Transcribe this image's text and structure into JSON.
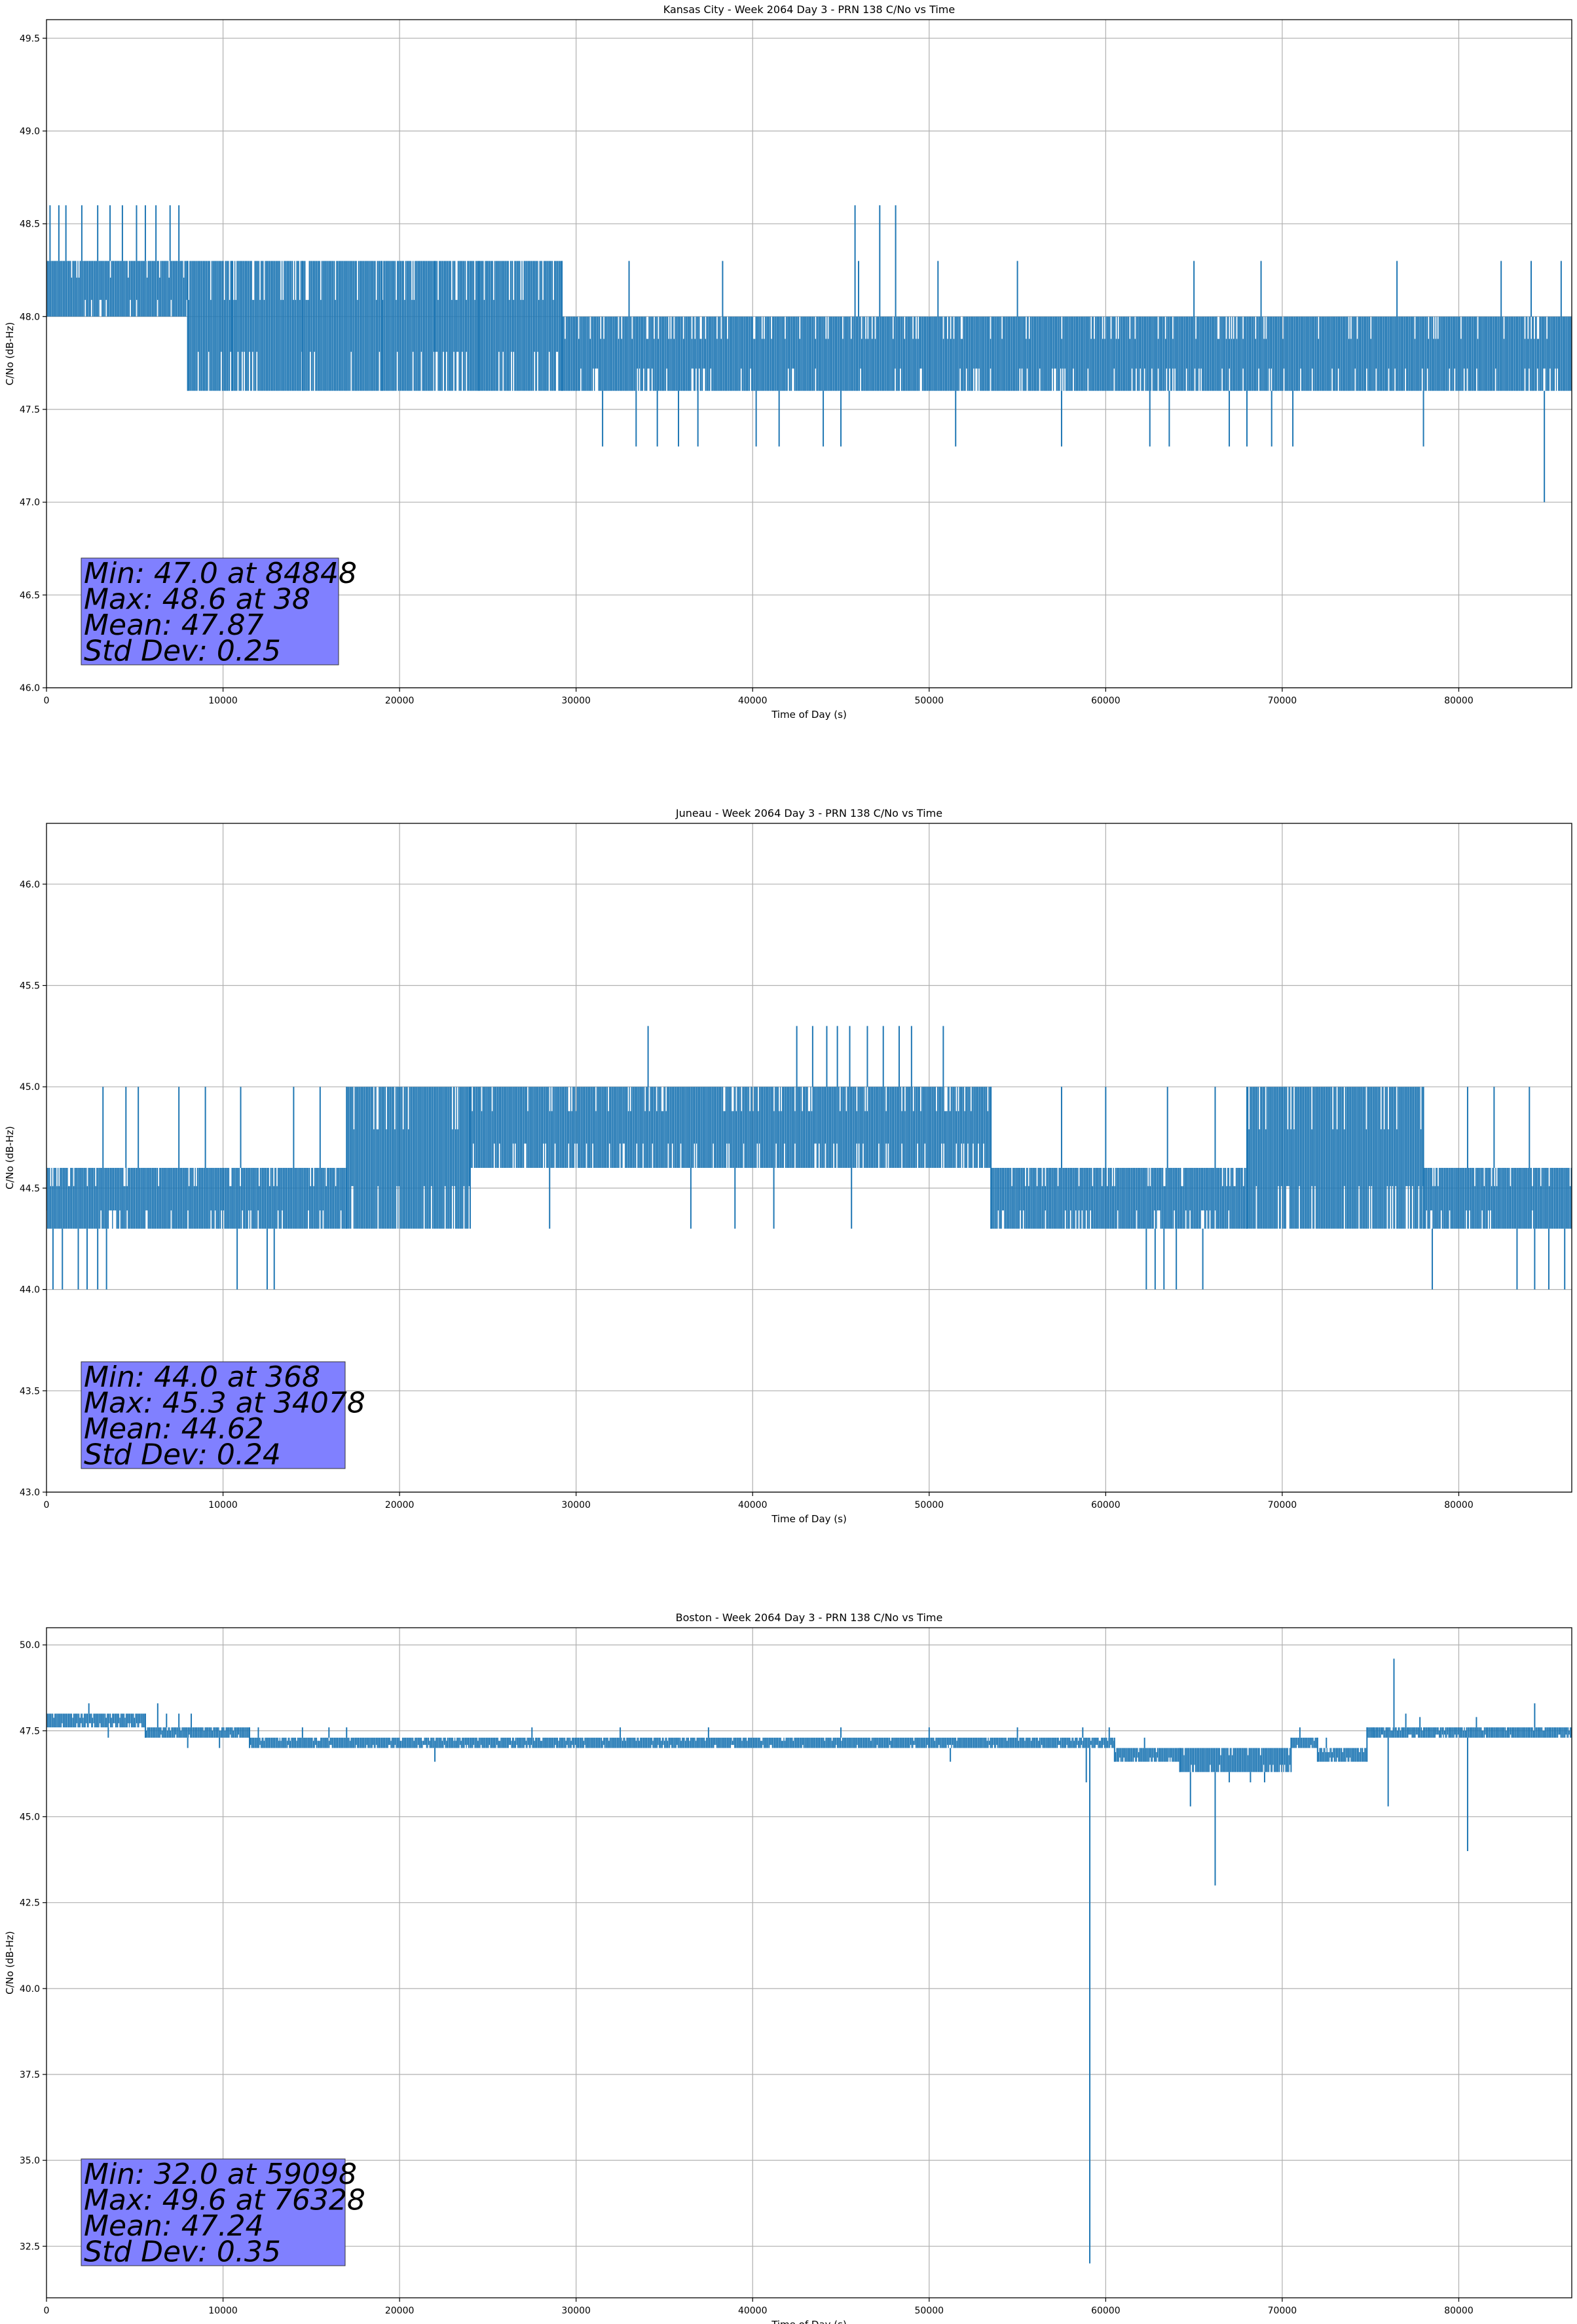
{
  "chart_data": [
    {
      "type": "line",
      "title": "Kansas City - Week 2064 Day 3 - PRN 138 C/No vs Time",
      "xlabel": "Time of Day (s)",
      "ylabel": "C/No (dB-Hz)",
      "xlim": [
        0,
        86400
      ],
      "ylim": [
        46.0,
        49.6
      ],
      "xticks": [
        0,
        10000,
        20000,
        30000,
        40000,
        50000,
        60000,
        70000,
        80000
      ],
      "yticks": [
        "46.0",
        "46.5",
        "47.0",
        "47.5",
        "48.0",
        "48.5",
        "49.0",
        "49.5"
      ],
      "grid": true,
      "line_color": "#1f77b4",
      "stats": {
        "min": "Min: 47.0 at 84848",
        "max": "Max: 48.6 at 38",
        "mean": "Mean: 47.87",
        "std": "Std Dev: 0.25"
      },
      "stats_box_color": "#8080ff",
      "band_segments": [
        {
          "x0": 0,
          "x1": 8000,
          "low": 48.0,
          "high": 48.3
        },
        {
          "x0": 8000,
          "x1": 29200,
          "low": 47.6,
          "high": 48.3
        },
        {
          "x0": 29200,
          "x1": 86400,
          "low": 47.6,
          "high": 48.0
        }
      ],
      "spikes": [
        [
          200,
          48.6
        ],
        [
          700,
          48.6
        ],
        [
          1100,
          48.6
        ],
        [
          2000,
          48.6
        ],
        [
          2900,
          48.6
        ],
        [
          3600,
          48.6
        ],
        [
          4300,
          48.6
        ],
        [
          5100,
          48.6
        ],
        [
          5600,
          48.6
        ],
        [
          6200,
          48.6
        ],
        [
          7000,
          48.6
        ],
        [
          7500,
          48.6
        ],
        [
          8400,
          47.6
        ],
        [
          13000,
          47.6
        ],
        [
          16500,
          47.6
        ],
        [
          21000,
          47.6
        ],
        [
          26500,
          47.6
        ],
        [
          10500,
          48.3
        ],
        [
          14500,
          48.3
        ],
        [
          19000,
          48.3
        ],
        [
          22000,
          48.3
        ],
        [
          24500,
          48.3
        ],
        [
          33000,
          48.3
        ],
        [
          38300,
          48.3
        ],
        [
          46000,
          48.3
        ],
        [
          50500,
          48.3
        ],
        [
          55000,
          48.3
        ],
        [
          65000,
          48.3
        ],
        [
          68800,
          48.3
        ],
        [
          76500,
          48.3
        ],
        [
          82400,
          48.3
        ],
        [
          84100,
          48.3
        ],
        [
          85800,
          48.3
        ],
        [
          31500,
          47.3
        ],
        [
          33400,
          47.3
        ],
        [
          34600,
          47.3
        ],
        [
          35800,
          47.3
        ],
        [
          36900,
          47.3
        ],
        [
          40200,
          47.3
        ],
        [
          41500,
          47.3
        ],
        [
          44000,
          47.3
        ],
        [
          45000,
          47.3
        ],
        [
          51500,
          47.3
        ],
        [
          57500,
          47.3
        ],
        [
          62500,
          47.3
        ],
        [
          63600,
          47.3
        ],
        [
          67000,
          47.3
        ],
        [
          68000,
          47.3
        ],
        [
          69400,
          47.3
        ],
        [
          70600,
          47.3
        ],
        [
          78000,
          47.3
        ],
        [
          45800,
          48.6
        ],
        [
          47200,
          48.6
        ],
        [
          48100,
          48.6
        ],
        [
          84848,
          47.0
        ]
      ]
    },
    {
      "type": "line",
      "title": "Juneau - Week 2064 Day 3 - PRN 138 C/No vs Time",
      "xlabel": "Time of Day (s)",
      "ylabel": "C/No (dB-Hz)",
      "xlim": [
        0,
        86400
      ],
      "ylim": [
        43.0,
        46.3
      ],
      "xticks": [
        0,
        10000,
        20000,
        30000,
        40000,
        50000,
        60000,
        70000,
        80000
      ],
      "yticks": [
        "43.0",
        "43.5",
        "44.0",
        "44.5",
        "45.0",
        "45.5",
        "46.0"
      ],
      "grid": true,
      "line_color": "#1f77b4",
      "stats": {
        "min": "Min: 44.0 at 368",
        "max": "Max: 45.3 at 34078",
        "mean": "Mean: 44.62",
        "std": "Std Dev: 0.24"
      },
      "stats_box_color": "#8080ff",
      "band_segments": [
        {
          "x0": 0,
          "x1": 17000,
          "low": 44.3,
          "high": 44.6
        },
        {
          "x0": 17000,
          "x1": 24000,
          "low": 44.3,
          "high": 45.0
        },
        {
          "x0": 24000,
          "x1": 53500,
          "low": 44.6,
          "high": 45.0
        },
        {
          "x0": 53500,
          "x1": 68000,
          "low": 44.3,
          "high": 44.6
        },
        {
          "x0": 68000,
          "x1": 78000,
          "low": 44.3,
          "high": 45.0
        },
        {
          "x0": 78000,
          "x1": 86400,
          "low": 44.3,
          "high": 44.6
        }
      ],
      "spikes": [
        [
          368,
          44.0
        ],
        [
          900,
          44.0
        ],
        [
          1800,
          44.0
        ],
        [
          2300,
          44.0
        ],
        [
          2900,
          44.0
        ],
        [
          3400,
          44.0
        ],
        [
          10800,
          44.0
        ],
        [
          12500,
          44.0
        ],
        [
          12900,
          44.0
        ],
        [
          62300,
          44.0
        ],
        [
          62800,
          44.0
        ],
        [
          63300,
          44.0
        ],
        [
          64000,
          44.0
        ],
        [
          65500,
          44.0
        ],
        [
          78500,
          44.0
        ],
        [
          83300,
          44.0
        ],
        [
          84300,
          44.0
        ],
        [
          85100,
          44.0
        ],
        [
          86000,
          44.0
        ],
        [
          3200,
          45.0
        ],
        [
          4500,
          45.0
        ],
        [
          5200,
          45.0
        ],
        [
          7500,
          45.0
        ],
        [
          9000,
          45.0
        ],
        [
          11000,
          45.0
        ],
        [
          14000,
          45.0
        ],
        [
          15500,
          45.0
        ],
        [
          57500,
          45.0
        ],
        [
          60000,
          45.0
        ],
        [
          63500,
          45.0
        ],
        [
          66200,
          45.0
        ],
        [
          80500,
          45.0
        ],
        [
          82000,
          45.0
        ],
        [
          84000,
          45.0
        ],
        [
          34078,
          45.3
        ],
        [
          42500,
          45.3
        ],
        [
          43400,
          45.3
        ],
        [
          44200,
          45.3
        ],
        [
          44800,
          45.3
        ],
        [
          45500,
          45.3
        ],
        [
          46500,
          45.3
        ],
        [
          47400,
          45.3
        ],
        [
          48300,
          45.3
        ],
        [
          49000,
          45.3
        ],
        [
          50800,
          45.3
        ],
        [
          21000,
          44.3
        ],
        [
          28500,
          44.3
        ],
        [
          36500,
          44.3
        ],
        [
          39000,
          44.3
        ],
        [
          41200,
          44.3
        ],
        [
          45600,
          44.3
        ]
      ]
    },
    {
      "type": "line",
      "title": "Boston - Week 2064 Day 3 - PRN 138 C/No vs Time",
      "xlabel": "Time of Day (s)",
      "ylabel": "C/No (dB-Hz)",
      "xlim": [
        0,
        86400
      ],
      "ylim": [
        31.0,
        50.5
      ],
      "xticks": [
        0,
        10000,
        20000,
        30000,
        40000,
        50000,
        60000,
        70000,
        80000
      ],
      "yticks": [
        "32.5",
        "35.0",
        "37.5",
        "40.0",
        "42.5",
        "45.0",
        "47.5",
        "50.0"
      ],
      "grid": true,
      "line_color": "#1f77b4",
      "stats": {
        "min": "Min: 32.0 at 59098",
        "max": "Max: 49.6 at 76328",
        "mean": "Mean: 47.24",
        "std": "Std Dev: 0.35"
      },
      "stats_box_color": "#8080ff",
      "band_segments": [
        {
          "x0": 0,
          "x1": 5600,
          "low": 47.6,
          "high": 48.0
        },
        {
          "x0": 5600,
          "x1": 11500,
          "low": 47.3,
          "high": 47.6
        },
        {
          "x0": 11500,
          "x1": 60500,
          "low": 47.0,
          "high": 47.3
        },
        {
          "x0": 60500,
          "x1": 64200,
          "low": 46.6,
          "high": 47.0
        },
        {
          "x0": 64200,
          "x1": 70500,
          "low": 46.3,
          "high": 47.0
        },
        {
          "x0": 70500,
          "x1": 72000,
          "low": 47.0,
          "high": 47.3
        },
        {
          "x0": 72000,
          "x1": 74800,
          "low": 46.6,
          "high": 47.0
        },
        {
          "x0": 74800,
          "x1": 86400,
          "low": 47.3,
          "high": 47.6
        }
      ],
      "spikes": [
        [
          2400,
          48.3
        ],
        [
          6300,
          48.3
        ],
        [
          6800,
          48.0
        ],
        [
          7500,
          48.0
        ],
        [
          8200,
          48.0
        ],
        [
          8000,
          47.0
        ],
        [
          3500,
          47.3
        ],
        [
          9800,
          47.0
        ],
        [
          12000,
          47.6
        ],
        [
          14500,
          47.6
        ],
        [
          16000,
          47.6
        ],
        [
          17000,
          47.6
        ],
        [
          22000,
          46.6
        ],
        [
          27500,
          47.6
        ],
        [
          32500,
          47.6
        ],
        [
          37500,
          47.6
        ],
        [
          45000,
          47.6
        ],
        [
          50000,
          47.6
        ],
        [
          51200,
          46.6
        ],
        [
          55000,
          47.6
        ],
        [
          58700,
          47.6
        ],
        [
          58900,
          46.0
        ],
        [
          59098,
          32.0
        ],
        [
          60200,
          47.6
        ],
        [
          62200,
          47.3
        ],
        [
          64800,
          45.3
        ],
        [
          66200,
          43.0
        ],
        [
          67000,
          46.0
        ],
        [
          68200,
          46.0
        ],
        [
          69000,
          46.0
        ],
        [
          71000,
          47.6
        ],
        [
          72500,
          47.3
        ],
        [
          75200,
          47.6
        ],
        [
          76000,
          45.3
        ],
        [
          76328,
          49.6
        ],
        [
          77000,
          48.0
        ],
        [
          77800,
          47.9
        ],
        [
          80500,
          44.0
        ],
        [
          81000,
          47.9
        ],
        [
          84300,
          48.3
        ]
      ]
    }
  ]
}
